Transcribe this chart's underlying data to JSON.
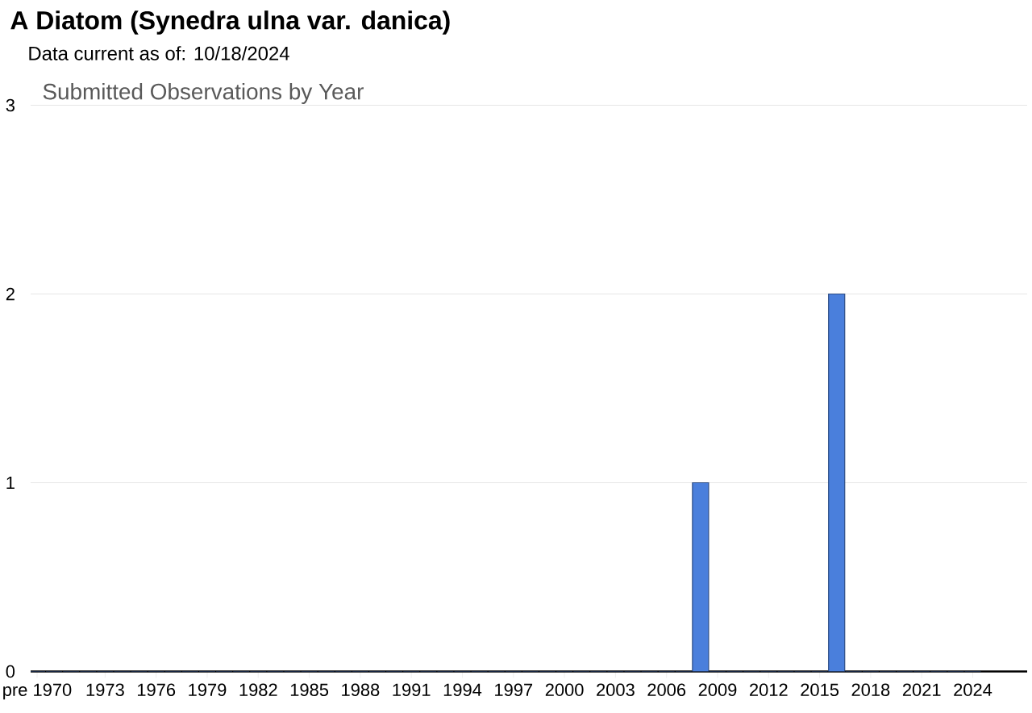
{
  "chart_data": {
    "type": "bar",
    "title": "A Diatom   (Synedra ulna var. danica)",
    "subtitle": "Data current as of: 10/18/2024",
    "annotations": [
      "Submitted Observations by Year"
    ],
    "categories": [
      "pre 1970",
      null,
      null,
      null,
      "1973",
      null,
      null,
      "1976",
      null,
      null,
      "1979",
      null,
      null,
      "1982",
      null,
      null,
      "1985",
      null,
      null,
      "1988",
      null,
      null,
      "1991",
      null,
      null,
      "1994",
      null,
      null,
      "1997",
      null,
      null,
      "2000",
      null,
      null,
      "2003",
      null,
      null,
      "2006",
      null,
      null,
      "2009",
      null,
      null,
      "2012",
      null,
      null,
      "2015",
      null,
      null,
      "2018",
      null,
      null,
      "2021",
      null,
      null,
      "2024"
    ],
    "values": [
      0,
      0,
      0,
      0,
      0,
      0,
      0,
      0,
      0,
      0,
      0,
      0,
      0,
      0,
      0,
      0,
      0,
      0,
      0,
      0,
      0,
      0,
      0,
      0,
      0,
      0,
      0,
      0,
      0,
      0,
      0,
      0,
      0,
      0,
      0,
      0,
      0,
      0,
      0,
      1,
      0,
      0,
      0,
      0,
      0,
      0,
      0,
      2,
      0,
      0,
      0,
      0,
      0,
      0,
      0,
      0
    ],
    "color": "#4a7fdc",
    "ylim": [
      0,
      3
    ],
    "yticks": [
      0,
      1,
      2,
      3
    ],
    "grid": "y"
  }
}
